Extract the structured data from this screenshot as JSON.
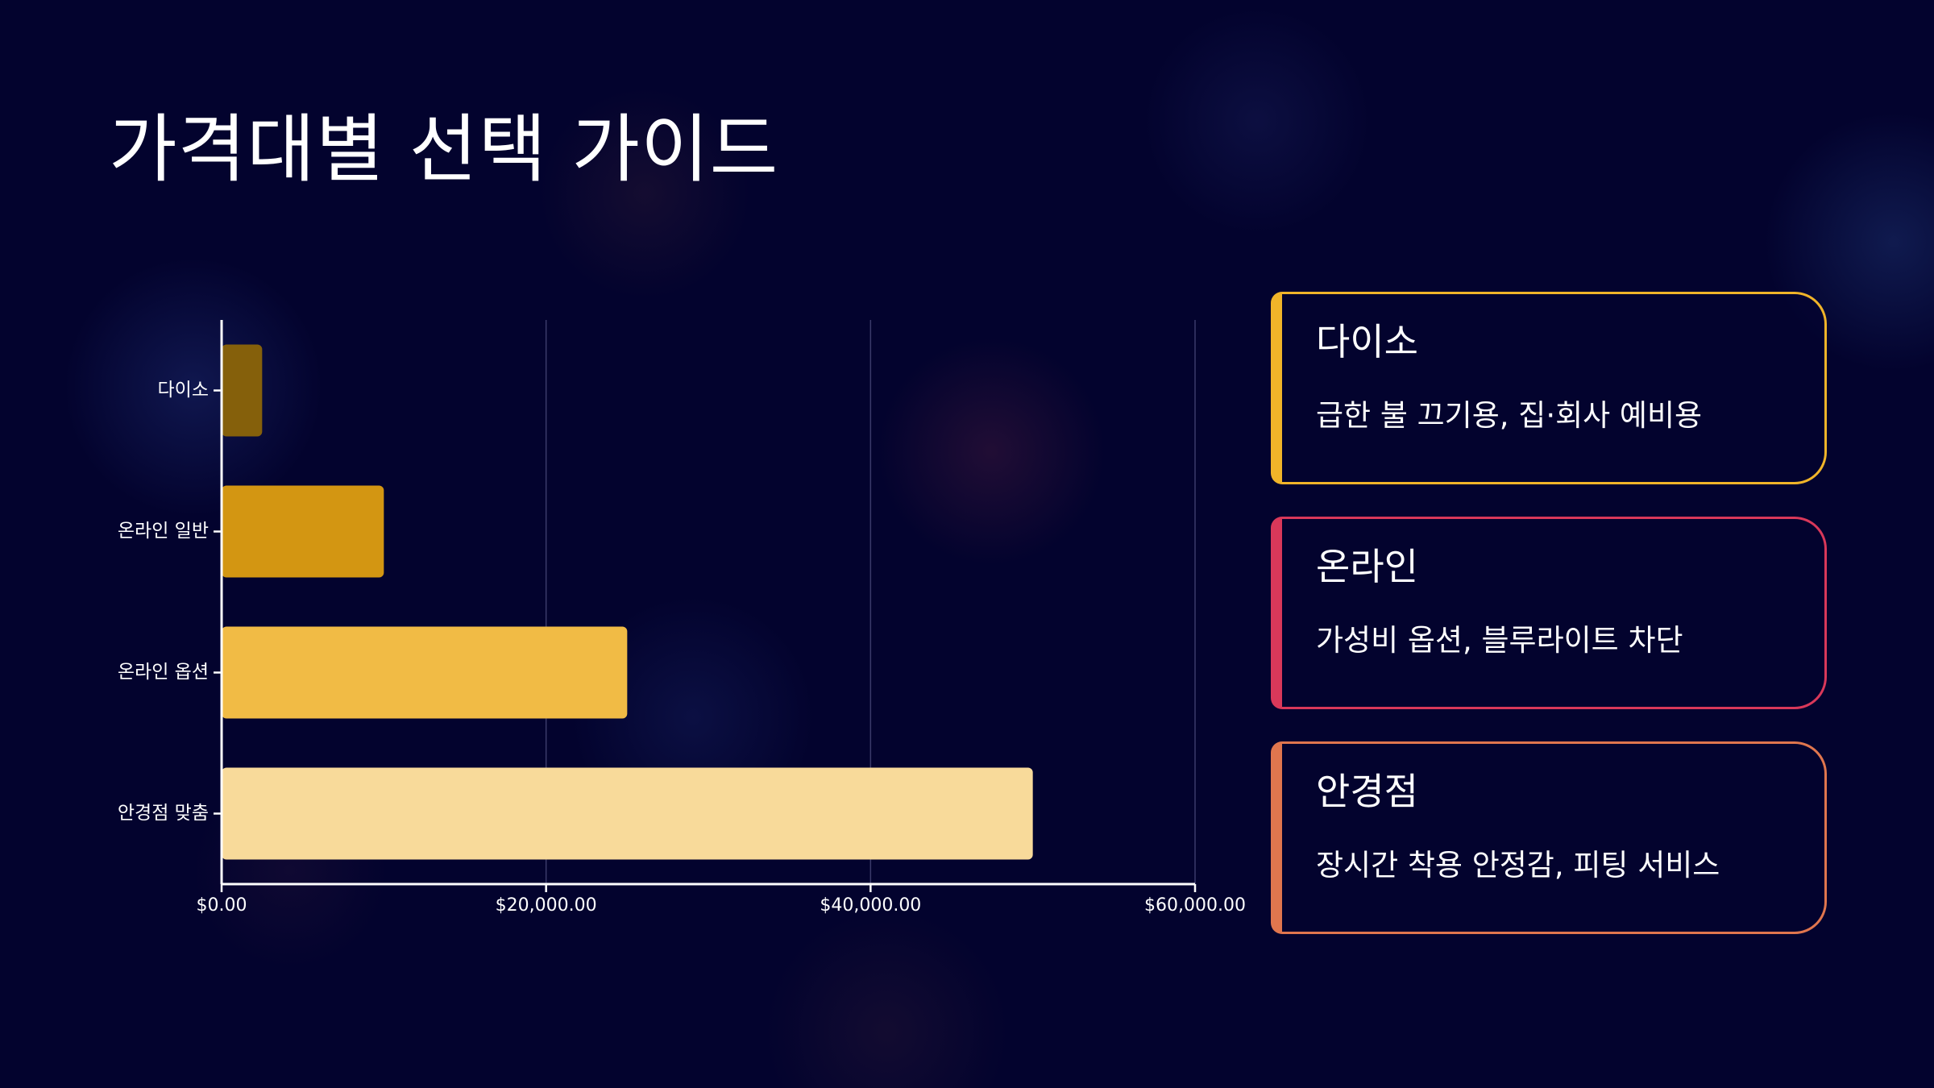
{
  "title": "가격대별 선택 가이드",
  "chart_data": {
    "type": "bar",
    "orientation": "horizontal",
    "categories": [
      "다이소",
      "온라인 일반",
      "온라인 옵션",
      "안경점 맞춤"
    ],
    "values": [
      2500,
      10000,
      25000,
      50000
    ],
    "colors": [
      "#85600b",
      "#d39612",
      "#f1bb45",
      "#f8da9a"
    ],
    "xlim": [
      0,
      60000
    ],
    "xticks": [
      0,
      20000,
      40000,
      60000
    ],
    "xtick_labels": [
      "$0.00",
      "$20,000.00",
      "$40,000.00",
      "$60,000.00"
    ],
    "grid": true,
    "legend": "none",
    "title": "",
    "xlabel": "",
    "ylabel": ""
  },
  "cards": [
    {
      "title": "다이소",
      "desc": "급한 불 끄기용, 집·회사 예비용",
      "color": "#f0b429"
    },
    {
      "title": "온라인",
      "desc": "가성비 옵션, 블루라이트 차단",
      "color": "#d9385a"
    },
    {
      "title": "안경점",
      "desc": "장시간 착용 안정감, 피팅 서비스",
      "color": "#e0764e"
    }
  ]
}
